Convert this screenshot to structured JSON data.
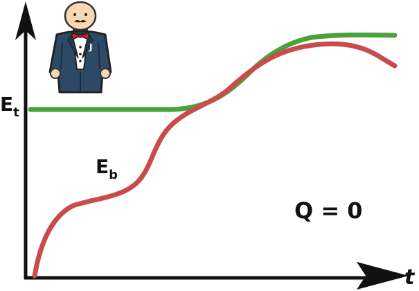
{
  "labels": {
    "x_axis": "t",
    "top_curve_main": "E",
    "top_curve_sub": "t",
    "bottom_curve_main": "E",
    "bottom_curve_sub": "b",
    "condition": "Q = 0",
    "badge_letter": "J"
  },
  "colors": {
    "top_curve": "#4aa23c",
    "bottom_curve": "#c94b4b",
    "axes": "#111111",
    "suit": "#2c4a68",
    "skin": "#f6d8b2",
    "bowtie": "#c0262c"
  },
  "icons": {
    "character": "bald-man-in-tuxedo-icon"
  }
}
